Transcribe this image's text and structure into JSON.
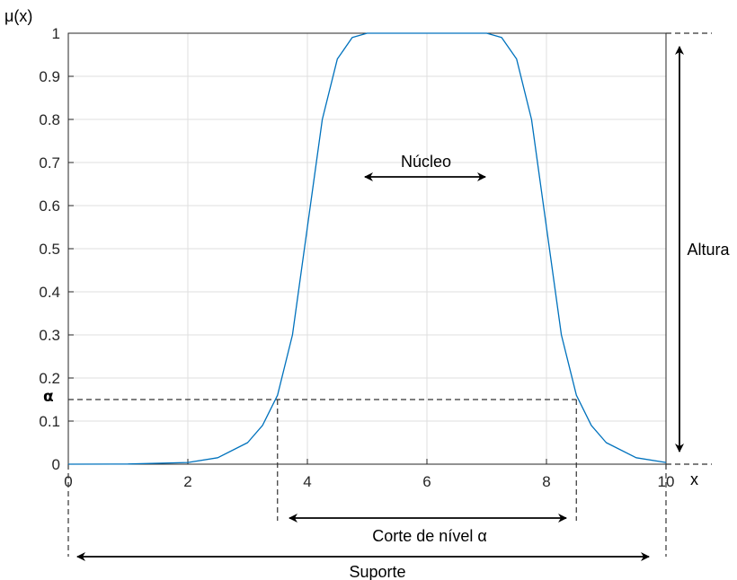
{
  "chart_data": {
    "type": "line",
    "ylabel": "μ(x)",
    "xlabel": "x",
    "xlim": [
      0,
      10
    ],
    "ylim": [
      0,
      1
    ],
    "xticks": [
      "0",
      "2",
      "4",
      "6",
      "8",
      "10"
    ],
    "yticks": [
      "0",
      "0.1",
      "0.2",
      "0.3",
      "0.4",
      "0.5",
      "0.6",
      "0.7",
      "0.8",
      "0.9",
      "1"
    ],
    "grid": true,
    "series": [
      {
        "color": "#0072BD",
        "x": [
          0,
          1,
          2,
          2.5,
          3,
          3.25,
          3.5,
          3.75,
          4,
          4.25,
          4.5,
          4.75,
          5,
          5.5,
          6,
          6.5,
          7,
          7.25,
          7.5,
          7.75,
          8,
          8.25,
          8.5,
          8.75,
          9,
          9.5,
          10
        ],
        "y": [
          0,
          0.0005,
          0.004,
          0.015,
          0.05,
          0.09,
          0.16,
          0.3,
          0.55,
          0.8,
          0.94,
          0.99,
          1,
          1,
          1,
          1,
          1,
          0.99,
          0.94,
          0.8,
          0.55,
          0.3,
          0.16,
          0.09,
          0.05,
          0.015,
          0.004
        ]
      }
    ],
    "alpha_level": 0.15,
    "alpha_cut_x": [
      3.5,
      8.5
    ],
    "annotations": {
      "alpha": "α",
      "core": "Núcleo",
      "height": "Altura",
      "alpha_cut": "Corte de nível α",
      "support": "Suporte"
    }
  }
}
